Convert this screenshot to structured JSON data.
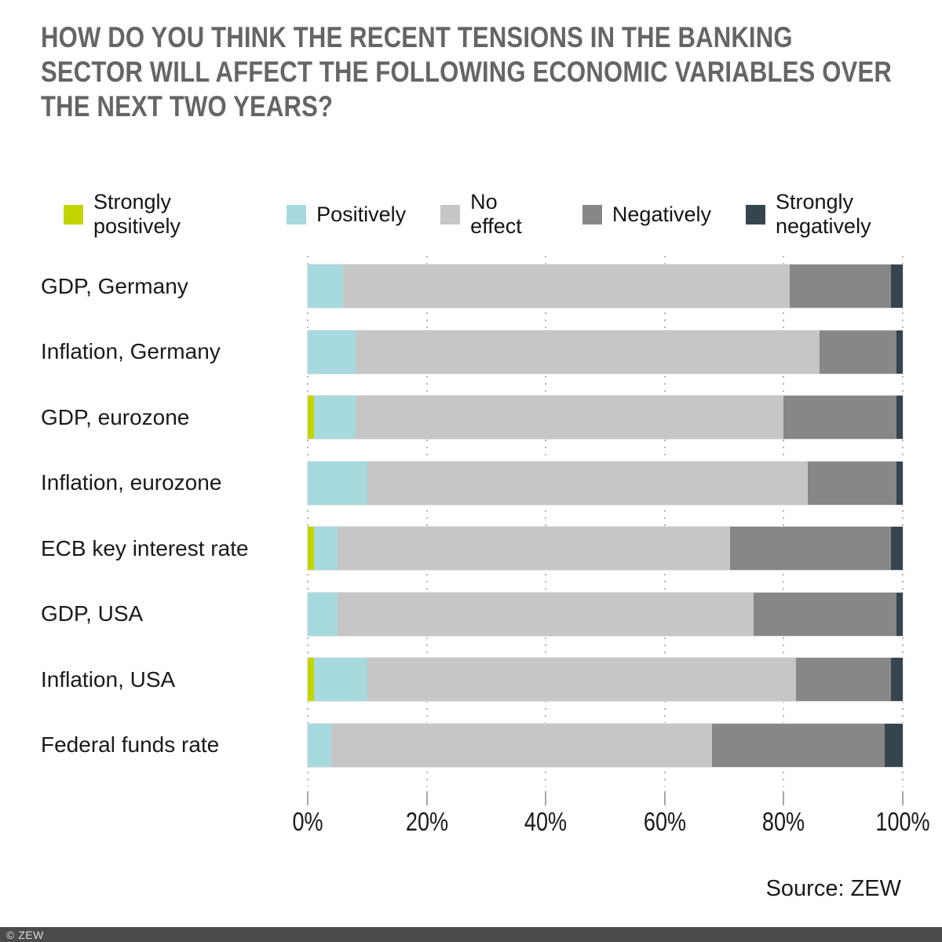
{
  "title": "HOW DO YOU THINK THE RECENT TENSIONS IN THE BANKING SECTOR WILL AFFECT THE FOLLOWING ECONOMIC VARIABLES OVER THE NEXT TWO YEARS?",
  "source_label": "Source: ZEW",
  "footer_label": "© ZEW",
  "colors": {
    "title_text": "#656565",
    "footer_bg": "#4b4b4b",
    "gridline": "#b4b4b4"
  },
  "chart_data": {
    "type": "bar",
    "stacked": true,
    "orientation": "horizontal",
    "unit": "%",
    "grid": "dotted-vertical",
    "legend_position": "top",
    "xlim": [
      0,
      100
    ],
    "x_ticks": [
      "0%",
      "20%",
      "40%",
      "60%",
      "80%",
      "100%"
    ],
    "categories": [
      "GDP, Germany",
      "Inflation, Germany",
      "GDP, eurozone",
      "Inflation, eurozone",
      "ECB key interest rate",
      "GDP, USA",
      "Inflation, USA",
      "Federal funds rate"
    ],
    "series": [
      {
        "name": "Strongly positively",
        "color": "#c3d500",
        "values": [
          0,
          0,
          1,
          0,
          1,
          0,
          1,
          0
        ]
      },
      {
        "name": "Positively",
        "color": "#a7dade",
        "values": [
          6,
          8,
          7,
          10,
          4,
          5,
          9,
          4
        ]
      },
      {
        "name": "No effect",
        "color": "#c6c6c6",
        "values": [
          75,
          78,
          72,
          74,
          66,
          70,
          72,
          64
        ]
      },
      {
        "name": "Negatively",
        "color": "#878787",
        "values": [
          17,
          13,
          19,
          15,
          27,
          24,
          16,
          29
        ]
      },
      {
        "name": "Strongly negatively",
        "color": "#36444e",
        "values": [
          2,
          1,
          1,
          1,
          2,
          1,
          2,
          3
        ]
      }
    ]
  }
}
